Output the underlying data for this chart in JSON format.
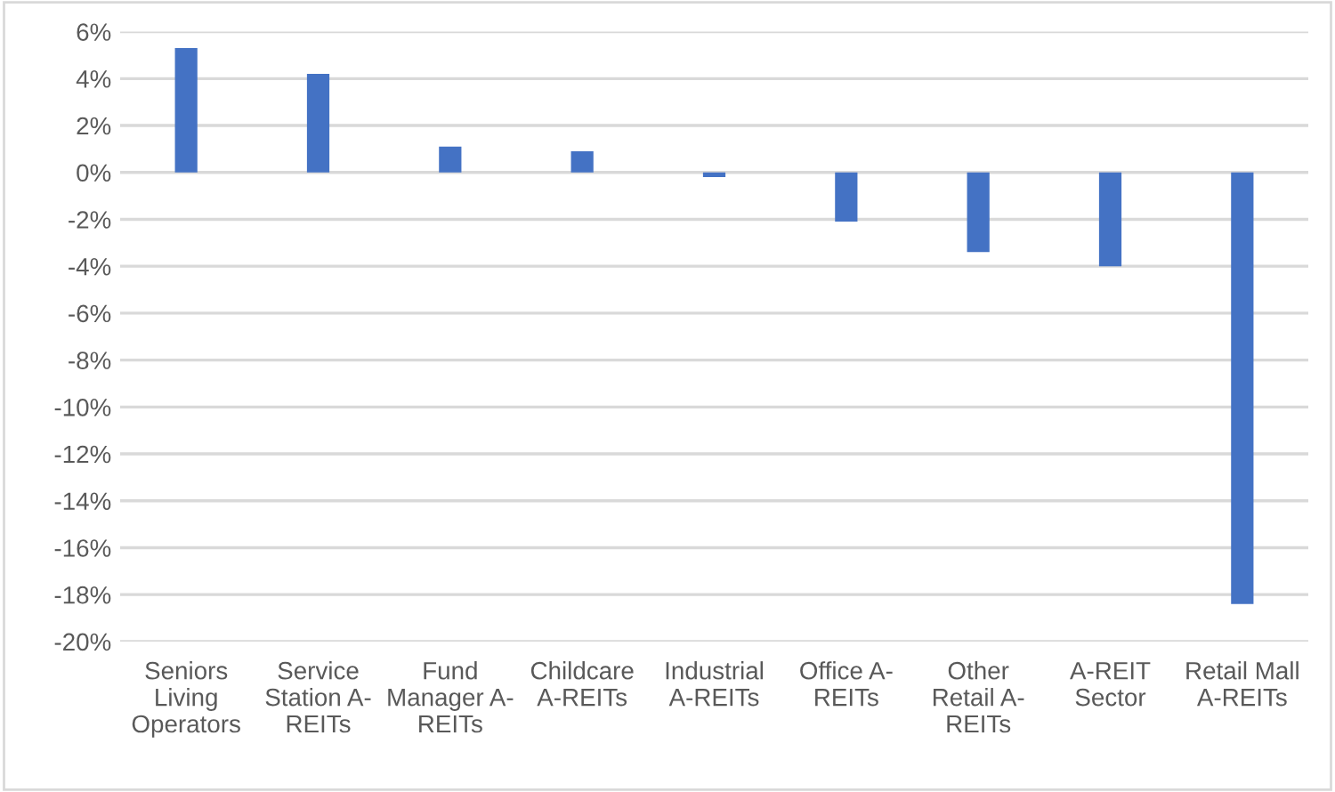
{
  "chart_data": {
    "type": "bar",
    "categories": [
      "Seniors Living Operators",
      "Service Station A-REITs",
      "Fund Manager A-REITs",
      "Childcare A-REITs",
      "Industrial A-REITs",
      "Office A-REITs",
      "Other Retail A-REITs",
      "A-REIT Sector",
      "Retail Mall A-REITs"
    ],
    "values": [
      5.3,
      4.2,
      1.1,
      0.9,
      -0.2,
      -2.1,
      -3.4,
      -4.0,
      -18.4
    ],
    "color": "#4472c4",
    "ylim": [
      -20,
      6
    ],
    "yticks": [
      {
        "value": -20,
        "label": "-20%"
      },
      {
        "value": -18,
        "label": "-18%"
      },
      {
        "value": -16,
        "label": "-16%"
      },
      {
        "value": -14,
        "label": "-14%"
      },
      {
        "value": -12,
        "label": "-12%"
      },
      {
        "value": -10,
        "label": "-10%"
      },
      {
        "value": -8,
        "label": "-8%"
      },
      {
        "value": -6,
        "label": "-6%"
      },
      {
        "value": -4,
        "label": "-4%"
      },
      {
        "value": -2,
        "label": "-2%"
      },
      {
        "value": 0,
        "label": "0%"
      },
      {
        "value": 2,
        "label": "2%"
      },
      {
        "value": 4,
        "label": "4%"
      },
      {
        "value": 6,
        "label": "6%"
      }
    ],
    "grid": "y",
    "legend": false
  }
}
